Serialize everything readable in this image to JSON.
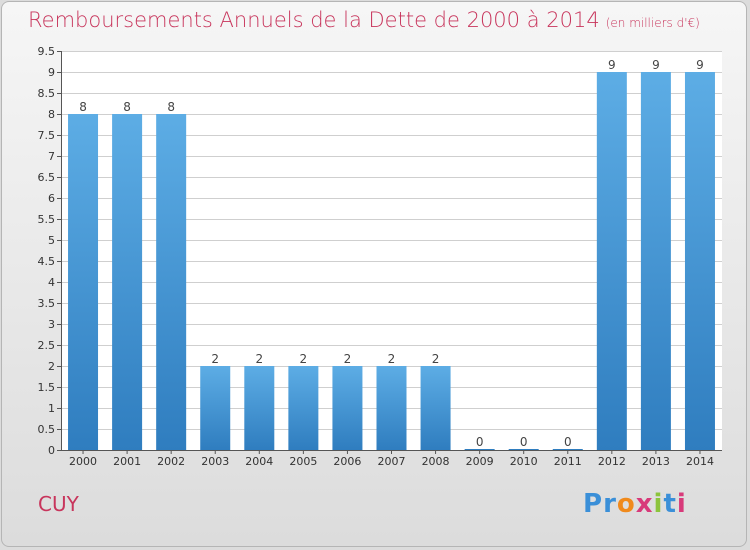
{
  "title": "Remboursements Annuels de la Dette de 2000 à 2014",
  "unit": "(en milliers d'€)",
  "commune": "CUY",
  "logo": {
    "text": "Proxiti",
    "letter_colors": [
      "#3a8fd8",
      "#3a8fd8",
      "#f08a1c",
      "#d83a7a",
      "#8cc43c",
      "#3a8fd8",
      "#d83a7a"
    ]
  },
  "colors": {
    "bar_top": "#5dade5",
    "bar_bottom": "#2f7dbf",
    "accent": "#c8355c",
    "axis": "#555555",
    "grid": "#cfcfcf"
  },
  "chart_data": {
    "type": "bar",
    "title": "Remboursements Annuels de la Dette de 2000 à 2014",
    "xlabel": "",
    "ylabel": "",
    "categories": [
      "2000",
      "2001",
      "2002",
      "2003",
      "2004",
      "2005",
      "2006",
      "2007",
      "2008",
      "2009",
      "2010",
      "2011",
      "2012",
      "2013",
      "2014"
    ],
    "values": [
      8,
      8,
      8,
      2,
      2,
      2,
      2,
      2,
      2,
      0,
      0,
      0,
      9,
      9,
      9
    ],
    "ylim": [
      0,
      9.5
    ],
    "yticks": [
      {
        "v": 0,
        "label": "0"
      },
      {
        "v": 0.5,
        "label": "0.5"
      },
      {
        "v": 1,
        "label": "1"
      },
      {
        "v": 1.5,
        "label": "1.5"
      },
      {
        "v": 2,
        "label": "2"
      },
      {
        "v": 2.5,
        "label": "2.5"
      },
      {
        "v": 3,
        "label": "3"
      },
      {
        "v": 3.5,
        "label": "3.5"
      },
      {
        "v": 4,
        "label": "4"
      },
      {
        "v": 4.5,
        "label": "4.5"
      },
      {
        "v": 5,
        "label": "5"
      },
      {
        "v": 5.5,
        "label": "5.5"
      },
      {
        "v": 6,
        "label": "6"
      },
      {
        "v": 6.5,
        "label": "6.5"
      },
      {
        "v": 7,
        "label": "7"
      },
      {
        "v": 7.5,
        "label": "7.5"
      },
      {
        "v": 8,
        "label": "8"
      },
      {
        "v": 8.5,
        "label": "8.5"
      },
      {
        "v": 9,
        "label": "9"
      },
      {
        "v": 9.5,
        "label": "9.5"
      }
    ],
    "grid": true,
    "data_labels": true
  }
}
